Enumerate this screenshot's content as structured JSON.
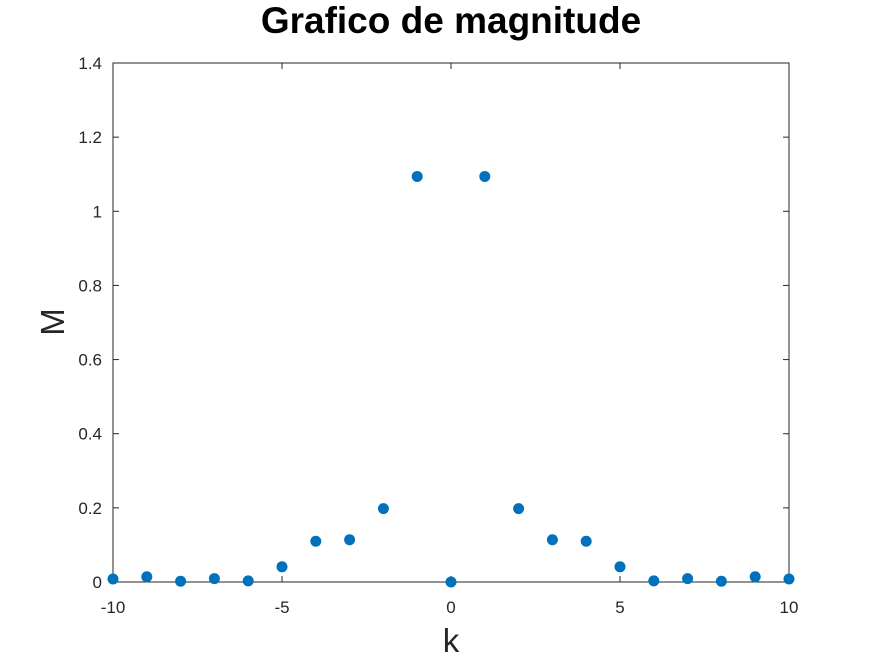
{
  "chart_data": {
    "type": "scatter",
    "title": "Grafico de magnitude",
    "xlabel": "k",
    "ylabel": "M",
    "xlim": [
      -10,
      10
    ],
    "ylim": [
      0,
      1.4
    ],
    "x_ticks": [
      -10,
      -5,
      0,
      5,
      10
    ],
    "x_tick_labels": [
      "-10",
      "-5",
      "0",
      "5",
      "10"
    ],
    "y_ticks": [
      0,
      0.2,
      0.4,
      0.6,
      0.8,
      1,
      1.2,
      1.4
    ],
    "y_tick_labels": [
      "0",
      "0.2",
      "0.4",
      "0.6",
      "0.8",
      "1",
      "1.2",
      "1.4"
    ],
    "grid": false,
    "marker_color": "#0072BD",
    "axis_color": "#262626",
    "series": [
      {
        "x": [
          -10,
          -9,
          -8,
          -7,
          -6,
          -5,
          -4,
          -3,
          -2,
          -1,
          0,
          1,
          2,
          3,
          4,
          5,
          6,
          7,
          8,
          9,
          10
        ],
        "y": [
          0.008,
          0.014,
          0.002,
          0.009,
          0.003,
          0.041,
          0.11,
          0.114,
          0.198,
          1.094,
          0.0,
          1.094,
          0.198,
          0.114,
          0.11,
          0.041,
          0.003,
          0.009,
          0.002,
          0.014,
          0.008
        ]
      }
    ]
  }
}
